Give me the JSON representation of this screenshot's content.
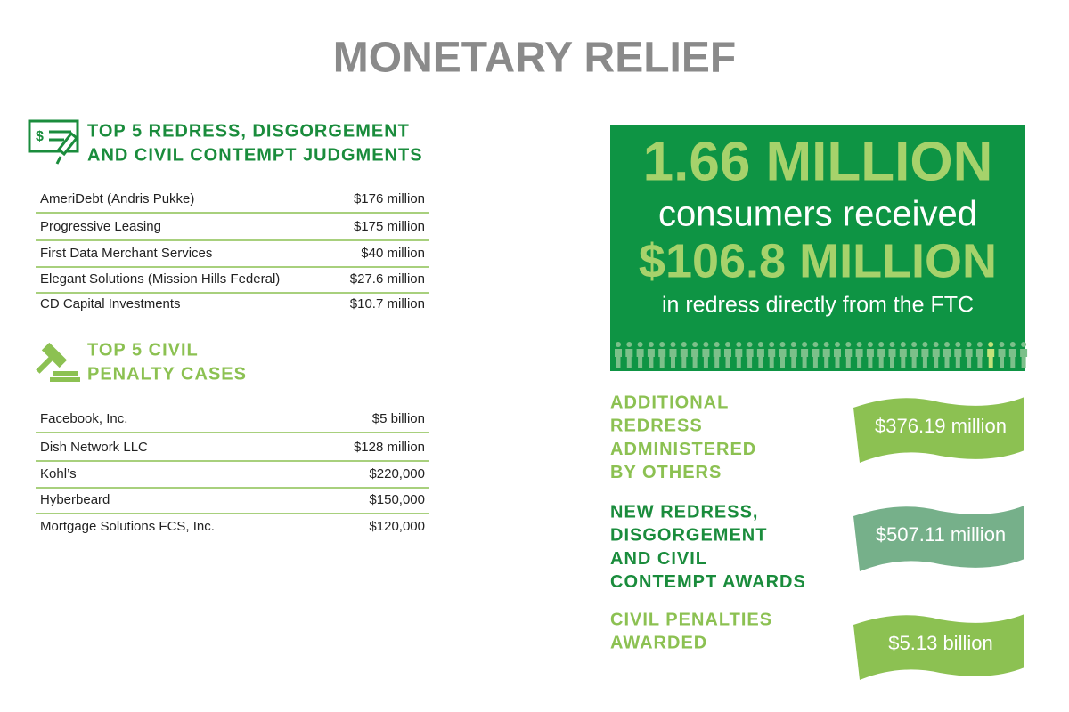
{
  "title": "MONETARY RELIEF",
  "sections": [
    {
      "heading": [
        "TOP 5 REDRESS, DISGORGEMENT",
        "AND CIVIL CONTEMPT JUDGMENTS"
      ],
      "rows": [
        [
          "AmeriDebt (Andris Pukke)",
          "$176 million"
        ],
        [
          "Progressive Leasing",
          "$175 million"
        ],
        [
          "First Data Merchant Services",
          "$40 million"
        ],
        [
          "Elegant Solutions (Mission Hills Federal)",
          "$27.6 million"
        ],
        [
          "CD Capital Investments",
          "$10.7 million"
        ]
      ]
    },
    {
      "heading": [
        "TOP 5 CIVIL",
        "PENALTY CASES"
      ],
      "rows": [
        [
          "Facebook, Inc.",
          "$5 billion"
        ],
        [
          "Dish Network LLC",
          "$128 million"
        ],
        [
          "Kohl’s",
          "$220,000"
        ],
        [
          "Hyberbeard",
          "$150,000"
        ],
        [
          "Mortgage Solutions FCS, Inc.",
          "$120,000"
        ]
      ]
    }
  ],
  "banner": [
    "1.66 MILLION",
    "consumers received",
    "$106.8 MILLION",
    "in redress directly from the FTC"
  ],
  "awards": [
    {
      "label": [
        "ADDITIONAL",
        "REDRESS",
        "ADMINISTERED",
        "BY OTHERS"
      ],
      "amount": "$376.19 million"
    },
    {
      "label": [
        "NEW REDRESS,",
        "DISGORGEMENT",
        "AND CIVIL",
        "CONTEMPT AWARDS"
      ],
      "amount": "$507.11 million"
    },
    {
      "label": [
        "CIVIL PENALTIES",
        "AWARDED"
      ],
      "amount": "$5.13 billion"
    }
  ]
}
